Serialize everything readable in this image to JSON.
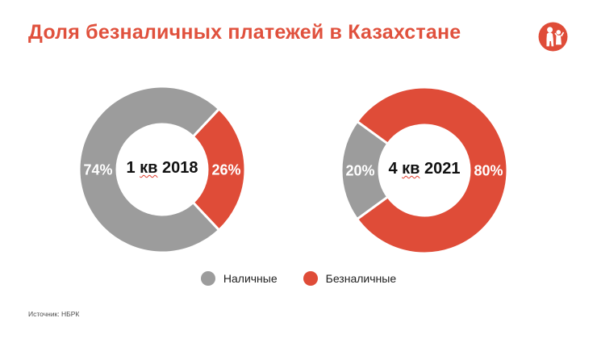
{
  "header": {
    "title": "Доля безналичных платежей в Казахстане",
    "title_color": "#E0513D",
    "logo": {
      "icon": "adult-and-child-people-logo",
      "color": "#DF4C38"
    }
  },
  "colors": {
    "cash_gray": "#9C9C9C",
    "cashless_red": "#DF4C38",
    "percent_label": "#ffffff",
    "slice_gap": "#ffffff",
    "center_text": "#111111"
  },
  "chart_data": [
    {
      "type": "pie",
      "subtype": "donut",
      "id": "donut-1q2018",
      "center_label": "1 кв 2018",
      "center_label_parts": [
        {
          "t": "1 "
        },
        {
          "t": "кв",
          "misspelled": true
        },
        {
          "t": " 2018"
        }
      ],
      "start_angle_clockwise_from_top": 43.2,
      "slices": [
        {
          "key": "cashless",
          "name": "Безналичные",
          "value": 26,
          "label": "26%",
          "color": "#DF4C38"
        },
        {
          "key": "cash",
          "name": "Наличные",
          "value": 74,
          "label": "74%",
          "color": "#9C9C9C"
        }
      ]
    },
    {
      "type": "pie",
      "subtype": "donut",
      "id": "donut-4q2021",
      "center_label": "4 кв 2021",
      "center_label_parts": [
        {
          "t": "4 "
        },
        {
          "t": "кв",
          "misspelled": true
        },
        {
          "t": " 2021"
        }
      ],
      "start_angle_clockwise_from_top": 234,
      "slices": [
        {
          "key": "cash",
          "name": "Наличные",
          "value": 20,
          "label": "20%",
          "color": "#9C9C9C"
        },
        {
          "key": "cashless",
          "name": "Безналичные",
          "value": 80,
          "label": "80%",
          "color": "#DF4C38"
        }
      ]
    }
  ],
  "legend": {
    "items": [
      {
        "key": "cash",
        "label": "Наличные",
        "color": "#9C9C9C"
      },
      {
        "key": "cashless",
        "label": "Безналичные",
        "color": "#DF4C38"
      }
    ]
  },
  "footer": {
    "source": "Источник: НБРК"
  }
}
